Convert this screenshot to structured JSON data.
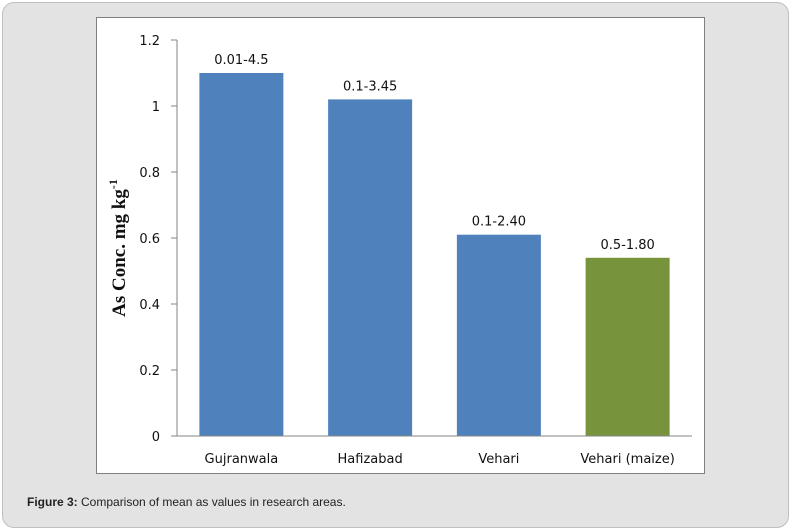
{
  "chart_data": {
    "type": "bar",
    "categories": [
      "Gujranwala",
      "Hafizabad",
      "Vehari",
      "Vehari (maize)"
    ],
    "values": [
      1.1,
      1.02,
      0.61,
      0.54
    ],
    "data_labels": [
      "0.01-4.5",
      "0.1-3.45",
      "0.1-2.40",
      "0.5-1.80"
    ],
    "bar_colors": [
      "#4f81bd",
      "#4f81bd",
      "#4f81bd",
      "#77933c"
    ],
    "ylabel_main": "As Conc.  mg kg",
    "ylabel_sup": "-1",
    "ylim": [
      0,
      1.2
    ],
    "yticks": [
      0,
      0.2,
      0.4,
      0.6,
      0.8,
      1,
      1.2
    ],
    "ytick_labels": [
      "0",
      "0.2",
      "0.4",
      "0.6",
      "0.8",
      "1",
      "1.2"
    ],
    "grid": false,
    "legend": "none"
  },
  "caption": {
    "label": "Figure 3:",
    "text": " Comparison of mean as values in research areas."
  }
}
